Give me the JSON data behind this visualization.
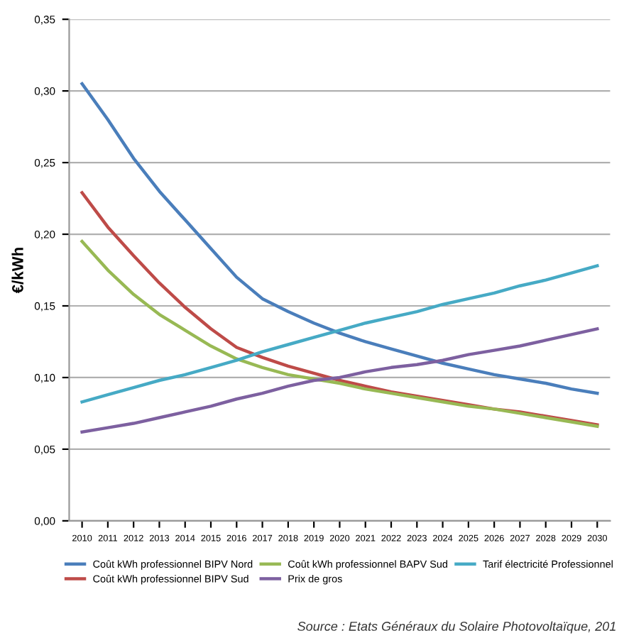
{
  "chart_data": {
    "type": "line",
    "ylabel": "€/kWh",
    "categories": [
      "2010",
      "2011",
      "2012",
      "2013",
      "2014",
      "2015",
      "2016",
      "2017",
      "2018",
      "2019",
      "2020",
      "2021",
      "2022",
      "2023",
      "2024",
      "2025",
      "2026",
      "2027",
      "2028",
      "2029",
      "2030"
    ],
    "series": [
      {
        "name": "Coût kWh professionnel BIPV Nord",
        "color": "#4a7ebb",
        "values": [
          0.305,
          0.28,
          0.253,
          0.23,
          0.21,
          0.19,
          0.17,
          0.155,
          0.146,
          0.138,
          0.131,
          0.125,
          0.12,
          0.115,
          0.11,
          0.106,
          0.102,
          0.099,
          0.096,
          0.092,
          0.089
        ]
      },
      {
        "name": "Coût kWh professionnel BIPV Sud",
        "color": "#be4b48",
        "values": [
          0.229,
          0.205,
          0.185,
          0.166,
          0.149,
          0.134,
          0.121,
          0.114,
          0.108,
          0.103,
          0.098,
          0.094,
          0.09,
          0.087,
          0.084,
          0.081,
          0.078,
          0.076,
          0.073,
          0.07,
          0.067
        ]
      },
      {
        "name": "Coût kWh professionnel BAPV Sud",
        "color": "#98b954",
        "values": [
          0.195,
          0.175,
          0.158,
          0.144,
          0.133,
          0.122,
          0.113,
          0.107,
          0.102,
          0.099,
          0.096,
          0.092,
          0.089,
          0.086,
          0.083,
          0.08,
          0.078,
          0.075,
          0.072,
          0.069,
          0.066
        ]
      },
      {
        "name": "Prix de gros",
        "color": "#7d60a0",
        "values": [
          0.062,
          0.065,
          0.068,
          0.072,
          0.076,
          0.08,
          0.085,
          0.089,
          0.094,
          0.098,
          0.1,
          0.104,
          0.107,
          0.109,
          0.112,
          0.116,
          0.119,
          0.122,
          0.126,
          0.13,
          0.134
        ]
      },
      {
        "name": "Tarif électricité Professionnel",
        "color": "#46aac5",
        "values": [
          0.083,
          0.088,
          0.093,
          0.098,
          0.102,
          0.107,
          0.112,
          0.118,
          0.123,
          0.128,
          0.133,
          0.138,
          0.142,
          0.146,
          0.151,
          0.155,
          0.159,
          0.164,
          0.168,
          0.173,
          0.178
        ]
      }
    ],
    "ylim": [
      0,
      0.35
    ],
    "yticks": [
      {
        "value": 0,
        "label": "0,00"
      },
      {
        "value": 0.05,
        "label": "0,05"
      },
      {
        "value": 0.1,
        "label": "0,10"
      },
      {
        "value": 0.15,
        "label": "0,15"
      },
      {
        "value": 0.2,
        "label": "0,20"
      },
      {
        "value": 0.25,
        "label": "0,25"
      },
      {
        "value": 0.3,
        "label": "0,30"
      },
      {
        "value": 0.35,
        "label": "0,35"
      }
    ],
    "grid": "y",
    "legend": "bottom",
    "marker": "none",
    "line_style": "solid",
    "annotations": [
      "Source : Etats Généraux du Solaire Photovoltaïque, 201"
    ]
  }
}
